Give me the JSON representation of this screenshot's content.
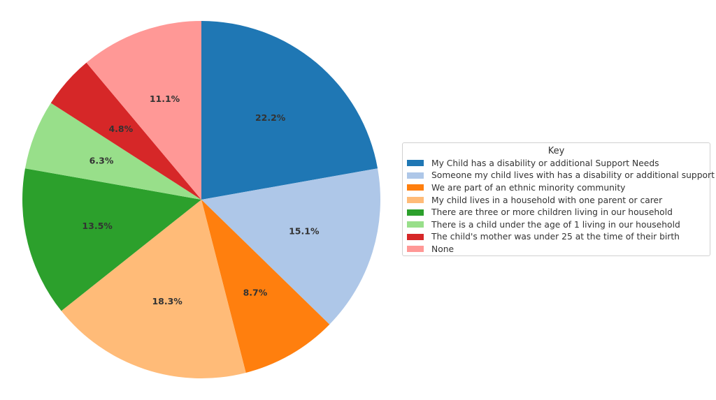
{
  "chart_data": {
    "type": "pie",
    "title": "",
    "start_angle_deg": 90,
    "direction": "clockwise",
    "legend": {
      "title": "Key",
      "placement": "right"
    },
    "slices": [
      {
        "label": "My Child has a disability or additional Support Needs",
        "value": 22.2,
        "value_label": "22.2%",
        "color": "#1f77b4"
      },
      {
        "label": "Someone my child lives with has a disability or additional support",
        "value": 15.1,
        "value_label": "15.1%",
        "color": "#aec7e8"
      },
      {
        "label": "We are part of an ethnic minority community",
        "value": 8.7,
        "value_label": "8.7%",
        "color": "#ff7f0e"
      },
      {
        "label": "My child lives in a household with one parent or carer",
        "value": 18.3,
        "value_label": "18.3%",
        "color": "#ffbb78"
      },
      {
        "label": "There are three or more children living in our household",
        "value": 13.5,
        "value_label": "13.5%",
        "color": "#2ca02c"
      },
      {
        "label": "There is a child under the age of 1 living in our household",
        "value": 6.3,
        "value_label": "6.3%",
        "color": "#98df8a"
      },
      {
        "label": "The child's mother was under 25 at the time of their birth",
        "value": 4.8,
        "value_label": "4.8%",
        "color": "#d62728"
      },
      {
        "label": "None",
        "value": 11.1,
        "value_label": "11.1%",
        "color": "#ff9896"
      }
    ]
  }
}
